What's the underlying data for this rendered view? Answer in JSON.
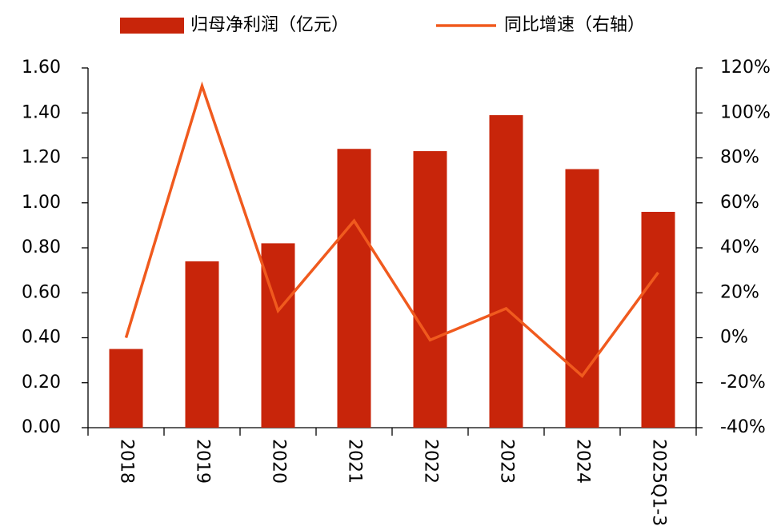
{
  "chart_data": {
    "type": "bar",
    "categories": [
      "2018",
      "2019",
      "2020",
      "2021",
      "2022",
      "2023",
      "2024",
      "2025Q1-3"
    ],
    "series": [
      {
        "name": "归母净利润（亿元）",
        "type": "bar",
        "color": "#c8250a",
        "values": [
          0.35,
          0.74,
          0.82,
          1.24,
          1.23,
          1.39,
          1.15,
          0.96
        ]
      },
      {
        "name": "同比增速（右轴）",
        "type": "line",
        "axis": "y2",
        "color": "#f05a1e",
        "values": [
          0,
          112,
          12,
          52,
          -1,
          13,
          -17,
          29
        ]
      }
    ],
    "ylim": [
      0,
      1.6
    ],
    "yticks": [
      {
        "value": 0,
        "label": "0.00"
      },
      {
        "value": 0.2,
        "label": "0.20"
      },
      {
        "value": 0.4,
        "label": "0.40"
      },
      {
        "value": 0.6,
        "label": "0.60"
      },
      {
        "value": 0.8,
        "label": "0.80"
      },
      {
        "value": 1.0,
        "label": "1.00"
      },
      {
        "value": 1.2,
        "label": "1.20"
      },
      {
        "value": 1.4,
        "label": "1.40"
      },
      {
        "value": 1.6,
        "label": "1.60"
      }
    ],
    "y2lim": [
      -40,
      120
    ],
    "y2ticks": [
      {
        "value": -40,
        "label": "-40%"
      },
      {
        "value": -20,
        "label": "-20%"
      },
      {
        "value": 0,
        "label": "0%"
      },
      {
        "value": 20,
        "label": "20%"
      },
      {
        "value": 40,
        "label": "40%"
      },
      {
        "value": 60,
        "label": "60%"
      },
      {
        "value": 80,
        "label": "80%"
      },
      {
        "value": 100,
        "label": "100%"
      },
      {
        "value": 120,
        "label": "120%"
      }
    ],
    "legend": "top"
  }
}
